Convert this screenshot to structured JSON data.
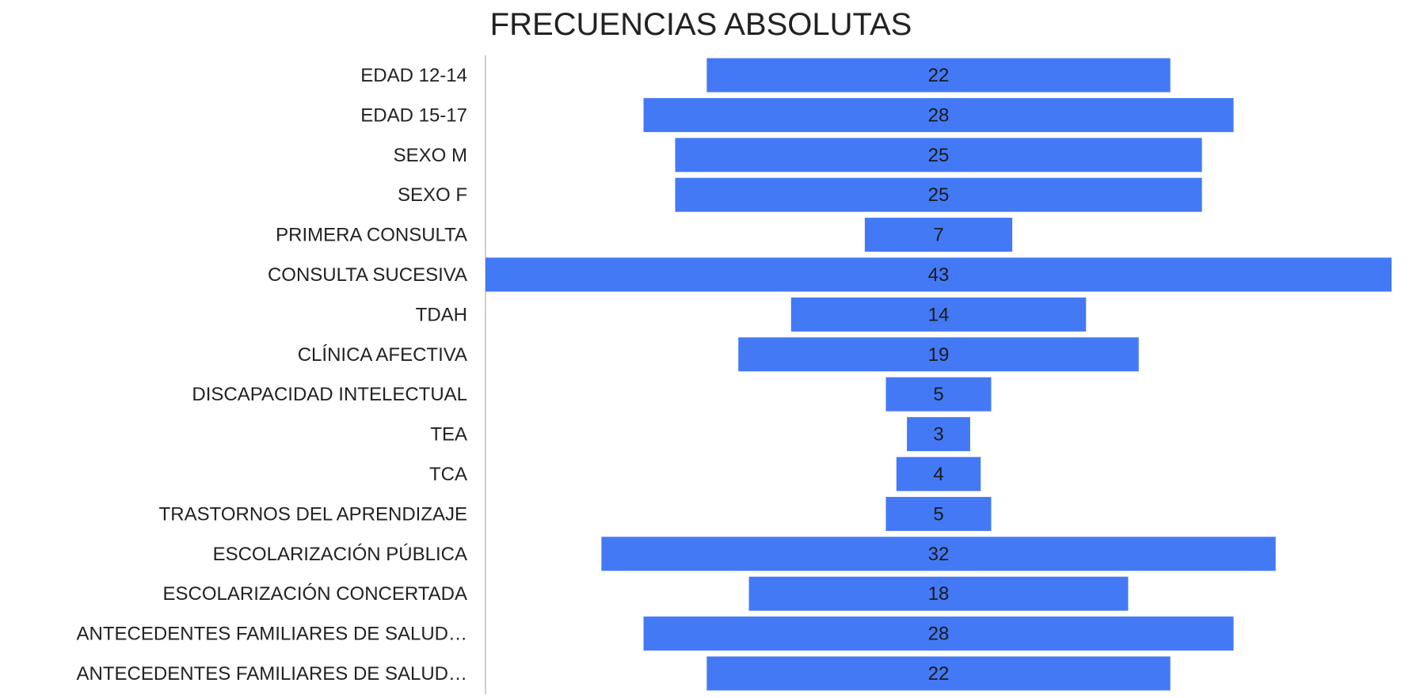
{
  "chart_data": {
    "type": "bar",
    "orientation": "horizontal",
    "layout": "centered",
    "title": "FRECUENCIAS ABSOLUTAS",
    "xlabel": "",
    "ylabel": "",
    "grid": false,
    "legend": "none",
    "categories": [
      "EDAD 12-14",
      "EDAD 15-17",
      "SEXO M",
      "SEXO F",
      "PRIMERA CONSULTA",
      "CONSULTA SUCESIVA",
      "TDAH",
      "CLÍNICA AFECTIVA",
      "DISCAPACIDAD INTELECTUAL",
      "TEA",
      "TCA",
      "TRASTORNOS DEL APRENDIZAJE",
      "ESCOLARIZACIÓN PÚBLICA",
      "ESCOLARIZACIÓN CONCERTADA",
      "ANTECEDENTES FAMILIARES DE SALUD…",
      "ANTECEDENTES FAMILIARES DE SALUD…"
    ],
    "values": [
      22,
      28,
      25,
      25,
      7,
      43,
      14,
      19,
      5,
      3,
      4,
      5,
      32,
      18,
      28,
      22
    ],
    "xlim": [
      0,
      43
    ],
    "bar_color": "#4479f5"
  }
}
